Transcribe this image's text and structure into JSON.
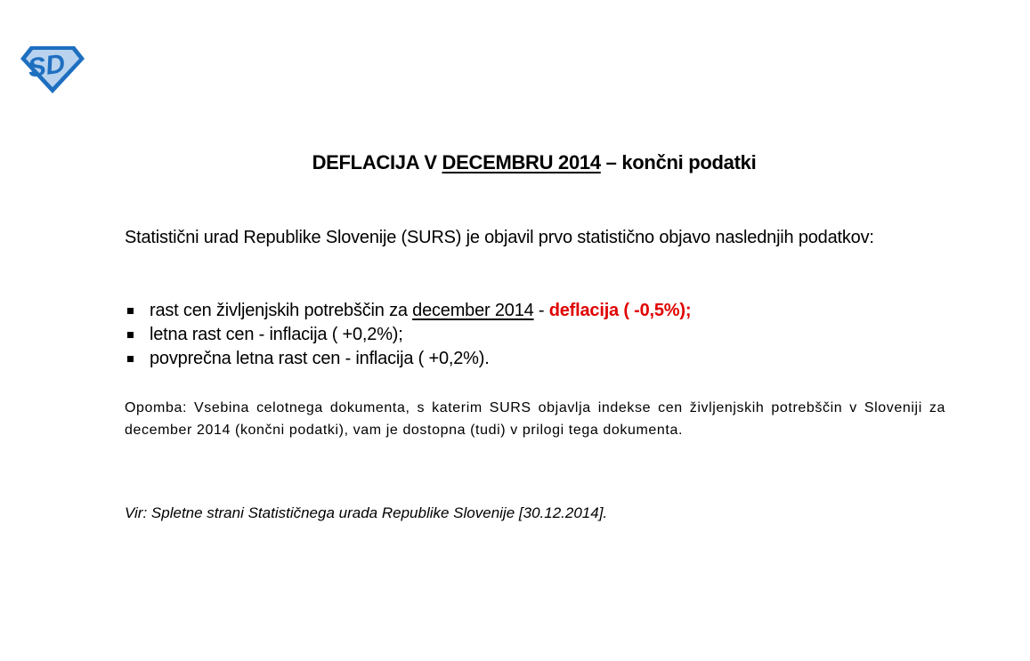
{
  "logo": {
    "text": "SD",
    "colors": {
      "primary": "#1e6fc0",
      "light": "#b9d3ef"
    }
  },
  "title": {
    "prefix": "DEFLACIJA V ",
    "underlined": "DECEMBRU 2014",
    "suffix": " – končni podatki"
  },
  "intro": "Statistični urad Republike Slovenije (SURS) je objavil prvo statistično objavo naslednjih podatkov:",
  "bullets": [
    {
      "text": "rast cen življenjskih potrebščin za ",
      "underlined": "december 2014",
      "sep": " - ",
      "highlight": "deflacija ( -0,5%);"
    },
    {
      "text": "letna rast cen - inflacija ( +0,2%);"
    },
    {
      "text": "povprečna letna rast cen - inflacija ( +0,2%)."
    }
  ],
  "note": "Opomba: Vsebina celotnega dokumenta, s katerim SURS objavlja indekse cen življenjskih potrebščin v Sloveniji za december 2014 (končni podatki), vam je dostopna (tudi) v prilogi tega dokumenta.",
  "source": "Vir: Spletne strani Statističnega urada Republike Slovenije [30.12.2014].",
  "colors": {
    "highlight": "#e00000"
  }
}
